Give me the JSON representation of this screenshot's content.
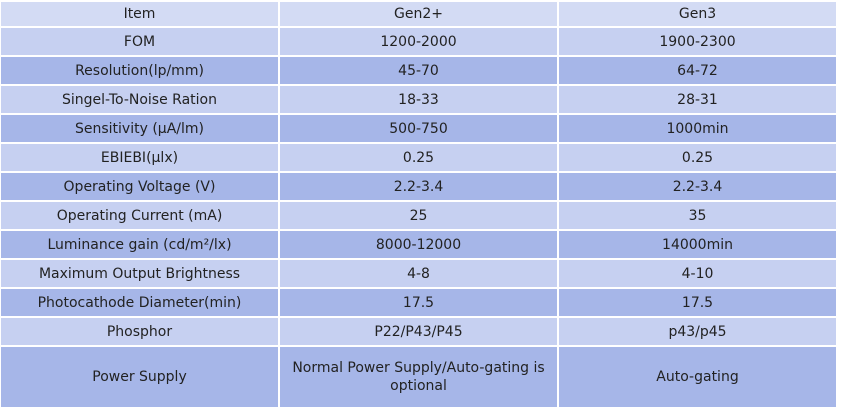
{
  "table": {
    "header": [
      "Item",
      "Gen2+",
      "Gen3"
    ],
    "rows": [
      [
        "FOM",
        "1200-2000",
        "1900-2300"
      ],
      [
        "Resolution(lp/mm)",
        "45-70",
        "64-72"
      ],
      [
        "Singel-To-Noise Ration",
        "18-33",
        "28-31"
      ],
      [
        "Sensitivity  (μA/lm)",
        "500-750",
        "1000min"
      ],
      [
        "EBIEBI(μlx)",
        "0.25",
        "0.25"
      ],
      [
        "Operating Voltage (V)",
        "2.2-3.4",
        "2.2-3.4"
      ],
      [
        "Operating Current  (mA)",
        "25",
        "35"
      ],
      [
        "Luminance gain (cd/m²/lx)",
        "8000-12000",
        "14000min"
      ],
      [
        "Maximum Output Brightness",
        "4-8",
        "4-10"
      ],
      [
        "Photocathode Diameter(min)",
        "17.5",
        "17.5"
      ],
      [
        "Phosphor",
        "P22/P43/P45",
        "p43/p45"
      ],
      [
        "Power Supply",
        "Normal Power Supply/Auto-gating is optional",
        "Auto-gating"
      ]
    ]
  }
}
